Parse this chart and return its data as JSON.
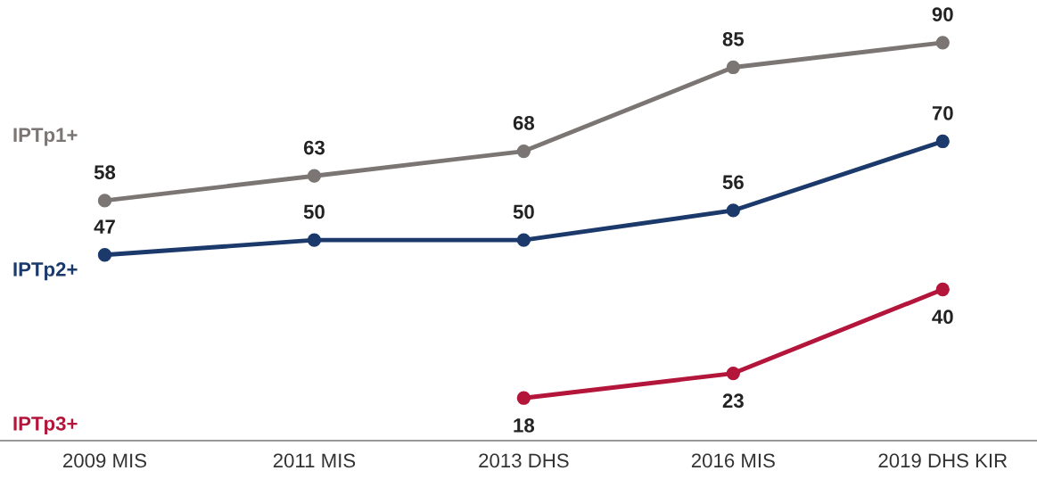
{
  "chart_data": {
    "type": "line",
    "categories": [
      "2009 MIS",
      "2011 MIS",
      "2013 DHS",
      "2016 MIS",
      "2019 DHS KIR"
    ],
    "series": [
      {
        "name": "IPTp1+",
        "color": "#7b7674",
        "values": [
          58,
          63,
          68,
          85,
          90
        ]
      },
      {
        "name": "IPTp2+",
        "color": "#1b3a6b",
        "values": [
          47,
          50,
          50,
          56,
          70
        ]
      },
      {
        "name": "IPTp3+",
        "color": "#b3163a",
        "values": [
          null,
          null,
          18,
          23,
          40
        ]
      }
    ],
    "tick_labels": "x",
    "data_labels": true,
    "marker": "circle",
    "line_style": "solid",
    "grid": false,
    "legend": false
  }
}
